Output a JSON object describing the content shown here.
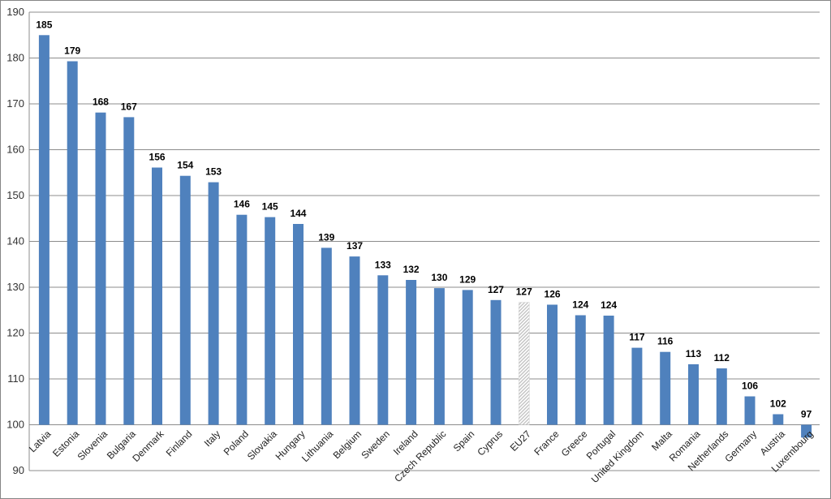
{
  "chart_data": {
    "type": "bar",
    "title": "",
    "xlabel": "",
    "ylabel": "",
    "ylim": [
      90,
      190
    ],
    "yticks": [
      90,
      100,
      110,
      120,
      130,
      140,
      150,
      160,
      170,
      180,
      190
    ],
    "baseline": 100,
    "grid": true,
    "legend": "none",
    "bar_color": "#4F81BD",
    "highlight_color": "#BFBFBF",
    "highlight_category": "EU27",
    "categories": [
      "Latvia",
      "Estonia",
      "Slovenia",
      "Bulgaria",
      "Denmark",
      "Finland",
      "Italy",
      "Poland",
      "Slovakia",
      "Hungary",
      "Lithuania",
      "Belgium",
      "Sweden",
      "Ireland",
      "Czech Republic",
      "Spain",
      "Cyprus",
      "EU27",
      "France",
      "Greece",
      "Portugal",
      "United Kingdom",
      "Malta",
      "Romania",
      "Netherlands",
      "Germany",
      "Austria",
      "Luxembourg"
    ],
    "values": [
      185.0,
      179.3,
      168.1,
      167.1,
      156.1,
      154.3,
      152.9,
      145.8,
      145.3,
      143.8,
      138.6,
      136.7,
      132.6,
      131.6,
      129.8,
      129.4,
      127.2,
      126.7,
      126.2,
      123.9,
      123.8,
      116.8,
      115.9,
      113.2,
      112.3,
      106.2,
      102.3,
      97.2
    ],
    "data_labels": [
      "185",
      "179",
      "168",
      "167",
      "156",
      "154",
      "153",
      "146",
      "145",
      "144",
      "139",
      "137",
      "133",
      "132",
      "130",
      "129",
      "127",
      "127",
      "126",
      "124",
      "124",
      "117",
      "116",
      "113",
      "112",
      "106",
      "102",
      "97"
    ]
  }
}
